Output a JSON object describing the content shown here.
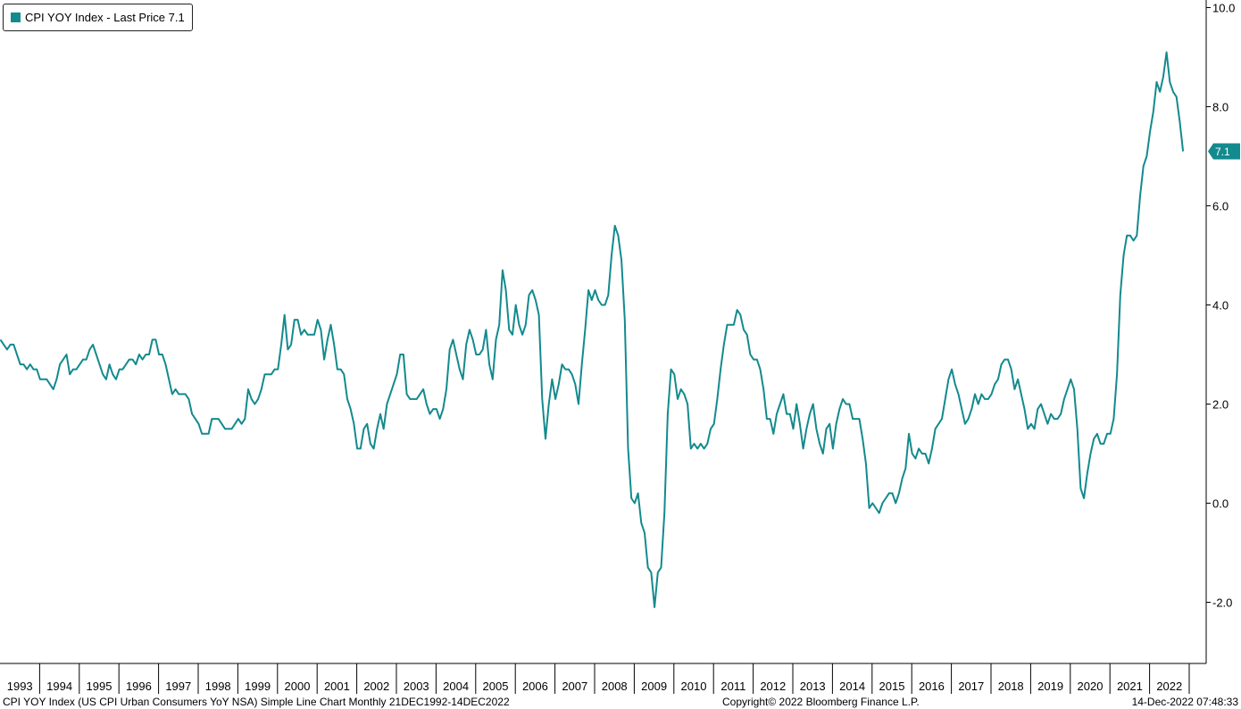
{
  "legend": {
    "label": "CPI YOY Index - Last Price 7.1",
    "color": "#138a8e"
  },
  "footer": {
    "description": "CPI YOY Index (US CPI Urban Consumers YoY NSA) Simple Line Chart Monthly 21DEC1992-14DEC2022",
    "copyright": "Copyright© 2022 Bloomberg Finance L.P.",
    "timestamp": "14-Dec-2022 07:48:33"
  },
  "chart_data": {
    "type": "line",
    "title": "",
    "xlabel": "",
    "ylabel": "",
    "ylim": [
      -3.1,
      10.1
    ],
    "yticks": [
      -2.0,
      0.0,
      2.0,
      4.0,
      6.0,
      8.0,
      10.0
    ],
    "ytick_labels": [
      "-2.0",
      "0.0",
      "2.0",
      "4.0",
      "6.0",
      "8.0",
      "10.0"
    ],
    "xlim": [
      "1993-01",
      "2022-12"
    ],
    "year_labels": [
      "1993",
      "1994",
      "1995",
      "1996",
      "1997",
      "1998",
      "1999",
      "2000",
      "2001",
      "2002",
      "2003",
      "2004",
      "2005",
      "2006",
      "2007",
      "2008",
      "2009",
      "2010",
      "2011",
      "2012",
      "2013",
      "2014",
      "2015",
      "2016",
      "2017",
      "2018",
      "2019",
      "2020",
      "2021",
      "2022"
    ],
    "last_value_label": "7.1",
    "grid": false,
    "legend_position": "top-left",
    "line_color": "#138a8e",
    "series": [
      {
        "name": "CPI YOY Index",
        "x": [
          "1993-01",
          "1993-02",
          "1993-03",
          "1993-04",
          "1993-05",
          "1993-06",
          "1993-07",
          "1993-08",
          "1993-09",
          "1993-10",
          "1993-11",
          "1993-12",
          "1994-01",
          "1994-02",
          "1994-03",
          "1994-04",
          "1994-05",
          "1994-06",
          "1994-07",
          "1994-08",
          "1994-09",
          "1994-10",
          "1994-11",
          "1994-12",
          "1995-01",
          "1995-02",
          "1995-03",
          "1995-04",
          "1995-05",
          "1995-06",
          "1995-07",
          "1995-08",
          "1995-09",
          "1995-10",
          "1995-11",
          "1995-12",
          "1996-01",
          "1996-02",
          "1996-03",
          "1996-04",
          "1996-05",
          "1996-06",
          "1996-07",
          "1996-08",
          "1996-09",
          "1996-10",
          "1996-11",
          "1996-12",
          "1997-01",
          "1997-02",
          "1997-03",
          "1997-04",
          "1997-05",
          "1997-06",
          "1997-07",
          "1997-08",
          "1997-09",
          "1997-10",
          "1997-11",
          "1997-12",
          "1998-01",
          "1998-02",
          "1998-03",
          "1998-04",
          "1998-05",
          "1998-06",
          "1998-07",
          "1998-08",
          "1998-09",
          "1998-10",
          "1998-11",
          "1998-12",
          "1999-01",
          "1999-02",
          "1999-03",
          "1999-04",
          "1999-05",
          "1999-06",
          "1999-07",
          "1999-08",
          "1999-09",
          "1999-10",
          "1999-11",
          "1999-12",
          "2000-01",
          "2000-02",
          "2000-03",
          "2000-04",
          "2000-05",
          "2000-06",
          "2000-07",
          "2000-08",
          "2000-09",
          "2000-10",
          "2000-11",
          "2000-12",
          "2001-01",
          "2001-02",
          "2001-03",
          "2001-04",
          "2001-05",
          "2001-06",
          "2001-07",
          "2001-08",
          "2001-09",
          "2001-10",
          "2001-11",
          "2001-12",
          "2002-01",
          "2002-02",
          "2002-03",
          "2002-04",
          "2002-05",
          "2002-06",
          "2002-07",
          "2002-08",
          "2002-09",
          "2002-10",
          "2002-11",
          "2002-12",
          "2003-01",
          "2003-02",
          "2003-03",
          "2003-04",
          "2003-05",
          "2003-06",
          "2003-07",
          "2003-08",
          "2003-09",
          "2003-10",
          "2003-11",
          "2003-12",
          "2004-01",
          "2004-02",
          "2004-03",
          "2004-04",
          "2004-05",
          "2004-06",
          "2004-07",
          "2004-08",
          "2004-09",
          "2004-10",
          "2004-11",
          "2004-12",
          "2005-01",
          "2005-02",
          "2005-03",
          "2005-04",
          "2005-05",
          "2005-06",
          "2005-07",
          "2005-08",
          "2005-09",
          "2005-10",
          "2005-11",
          "2005-12",
          "2006-01",
          "2006-02",
          "2006-03",
          "2006-04",
          "2006-05",
          "2006-06",
          "2006-07",
          "2006-08",
          "2006-09",
          "2006-10",
          "2006-11",
          "2006-12",
          "2007-01",
          "2007-02",
          "2007-03",
          "2007-04",
          "2007-05",
          "2007-06",
          "2007-07",
          "2007-08",
          "2007-09",
          "2007-10",
          "2007-11",
          "2007-12",
          "2008-01",
          "2008-02",
          "2008-03",
          "2008-04",
          "2008-05",
          "2008-06",
          "2008-07",
          "2008-08",
          "2008-09",
          "2008-10",
          "2008-11",
          "2008-12",
          "2009-01",
          "2009-02",
          "2009-03",
          "2009-04",
          "2009-05",
          "2009-06",
          "2009-07",
          "2009-08",
          "2009-09",
          "2009-10",
          "2009-11",
          "2009-12",
          "2010-01",
          "2010-02",
          "2010-03",
          "2010-04",
          "2010-05",
          "2010-06",
          "2010-07",
          "2010-08",
          "2010-09",
          "2010-10",
          "2010-11",
          "2010-12",
          "2011-01",
          "2011-02",
          "2011-03",
          "2011-04",
          "2011-05",
          "2011-06",
          "2011-07",
          "2011-08",
          "2011-09",
          "2011-10",
          "2011-11",
          "2011-12",
          "2012-01",
          "2012-02",
          "2012-03",
          "2012-04",
          "2012-05",
          "2012-06",
          "2012-07",
          "2012-08",
          "2012-09",
          "2012-10",
          "2012-11",
          "2012-12",
          "2013-01",
          "2013-02",
          "2013-03",
          "2013-04",
          "2013-05",
          "2013-06",
          "2013-07",
          "2013-08",
          "2013-09",
          "2013-10",
          "2013-11",
          "2013-12",
          "2014-01",
          "2014-02",
          "2014-03",
          "2014-04",
          "2014-05",
          "2014-06",
          "2014-07",
          "2014-08",
          "2014-09",
          "2014-10",
          "2014-11",
          "2014-12",
          "2015-01",
          "2015-02",
          "2015-03",
          "2015-04",
          "2015-05",
          "2015-06",
          "2015-07",
          "2015-08",
          "2015-09",
          "2015-10",
          "2015-11",
          "2015-12",
          "2016-01",
          "2016-02",
          "2016-03",
          "2016-04",
          "2016-05",
          "2016-06",
          "2016-07",
          "2016-08",
          "2016-09",
          "2016-10",
          "2016-11",
          "2016-12",
          "2017-01",
          "2017-02",
          "2017-03",
          "2017-04",
          "2017-05",
          "2017-06",
          "2017-07",
          "2017-08",
          "2017-09",
          "2017-10",
          "2017-11",
          "2017-12",
          "2018-01",
          "2018-02",
          "2018-03",
          "2018-04",
          "2018-05",
          "2018-06",
          "2018-07",
          "2018-08",
          "2018-09",
          "2018-10",
          "2018-11",
          "2018-12",
          "2019-01",
          "2019-02",
          "2019-03",
          "2019-04",
          "2019-05",
          "2019-06",
          "2019-07",
          "2019-08",
          "2019-09",
          "2019-10",
          "2019-11",
          "2019-12",
          "2020-01",
          "2020-02",
          "2020-03",
          "2020-04",
          "2020-05",
          "2020-06",
          "2020-07",
          "2020-08",
          "2020-09",
          "2020-10",
          "2020-11",
          "2020-12",
          "2021-01",
          "2021-02",
          "2021-03",
          "2021-04",
          "2021-05",
          "2021-06",
          "2021-07",
          "2021-08",
          "2021-09",
          "2021-10",
          "2021-11",
          "2021-12",
          "2022-01",
          "2022-02",
          "2022-03",
          "2022-04",
          "2022-05",
          "2022-06",
          "2022-07",
          "2022-08",
          "2022-09",
          "2022-10",
          "2022-11"
        ],
        "values": [
          3.3,
          3.2,
          3.1,
          3.2,
          3.2,
          3.0,
          2.8,
          2.8,
          2.7,
          2.8,
          2.7,
          2.7,
          2.5,
          2.5,
          2.5,
          2.4,
          2.3,
          2.5,
          2.8,
          2.9,
          3.0,
          2.6,
          2.7,
          2.7,
          2.8,
          2.9,
          2.9,
          3.1,
          3.2,
          3.0,
          2.8,
          2.6,
          2.5,
          2.8,
          2.6,
          2.5,
          2.7,
          2.7,
          2.8,
          2.9,
          2.9,
          2.8,
          3.0,
          2.9,
          3.0,
          3.0,
          3.3,
          3.3,
          3.0,
          3.0,
          2.8,
          2.5,
          2.2,
          2.3,
          2.2,
          2.2,
          2.2,
          2.1,
          1.8,
          1.7,
          1.6,
          1.4,
          1.4,
          1.4,
          1.7,
          1.7,
          1.7,
          1.6,
          1.5,
          1.5,
          1.5,
          1.6,
          1.7,
          1.6,
          1.7,
          2.3,
          2.1,
          2.0,
          2.1,
          2.3,
          2.6,
          2.6,
          2.6,
          2.7,
          2.7,
          3.2,
          3.8,
          3.1,
          3.2,
          3.7,
          3.7,
          3.4,
          3.5,
          3.4,
          3.4,
          3.4,
          3.7,
          3.5,
          2.9,
          3.3,
          3.6,
          3.2,
          2.7,
          2.7,
          2.6,
          2.1,
          1.9,
          1.6,
          1.1,
          1.1,
          1.5,
          1.6,
          1.2,
          1.1,
          1.5,
          1.8,
          1.5,
          2.0,
          2.2,
          2.4,
          2.6,
          3.0,
          3.0,
          2.2,
          2.1,
          2.1,
          2.1,
          2.2,
          2.3,
          2.0,
          1.8,
          1.9,
          1.9,
          1.7,
          1.9,
          2.3,
          3.1,
          3.3,
          3.0,
          2.7,
          2.5,
          3.2,
          3.5,
          3.3,
          3.0,
          3.0,
          3.1,
          3.5,
          2.8,
          2.5,
          3.3,
          3.6,
          4.7,
          4.3,
          3.5,
          3.4,
          4.0,
          3.6,
          3.4,
          3.6,
          4.2,
          4.3,
          4.1,
          3.8,
          2.1,
          1.3,
          2.0,
          2.5,
          2.1,
          2.4,
          2.8,
          2.7,
          2.7,
          2.6,
          2.4,
          2.0,
          2.8,
          3.5,
          4.3,
          4.1,
          4.3,
          4.1,
          4.0,
          4.0,
          4.2,
          5.0,
          5.6,
          5.4,
          4.9,
          3.7,
          1.1,
          0.1,
          0.0,
          0.2,
          -0.4,
          -0.6,
          -1.3,
          -1.4,
          -2.1,
          -1.4,
          -1.3,
          -0.2,
          1.8,
          2.7,
          2.6,
          2.1,
          2.3,
          2.2,
          2.0,
          1.1,
          1.2,
          1.1,
          1.2,
          1.1,
          1.2,
          1.5,
          1.6,
          2.1,
          2.7,
          3.2,
          3.6,
          3.6,
          3.6,
          3.9,
          3.8,
          3.5,
          3.4,
          3.0,
          2.9,
          2.9,
          2.7,
          2.3,
          1.7,
          1.7,
          1.4,
          1.8,
          2.0,
          2.2,
          1.8,
          1.8,
          1.5,
          2.0,
          1.6,
          1.1,
          1.5,
          1.8,
          2.0,
          1.5,
          1.2,
          1.0,
          1.5,
          1.6,
          1.1,
          1.6,
          1.9,
          2.1,
          2.0,
          2.0,
          1.7,
          1.7,
          1.7,
          1.3,
          0.8,
          -0.1,
          0.0,
          -0.1,
          -0.2,
          0.0,
          0.1,
          0.2,
          0.2,
          0.0,
          0.2,
          0.5,
          0.7,
          1.4,
          1.0,
          0.9,
          1.1,
          1.0,
          1.0,
          0.8,
          1.1,
          1.5,
          1.6,
          1.7,
          2.1,
          2.5,
          2.7,
          2.4,
          2.2,
          1.9,
          1.6,
          1.7,
          1.9,
          2.2,
          2.0,
          2.2,
          2.1,
          2.1,
          2.2,
          2.4,
          2.5,
          2.8,
          2.9,
          2.9,
          2.7,
          2.3,
          2.5,
          2.2,
          1.9,
          1.5,
          1.6,
          1.5,
          1.9,
          2.0,
          1.8,
          1.6,
          1.8,
          1.7,
          1.7,
          1.8,
          2.1,
          2.3,
          2.5,
          2.3,
          1.5,
          0.3,
          0.1,
          0.6,
          1.0,
          1.3,
          1.4,
          1.2,
          1.2,
          1.4,
          1.4,
          1.7,
          2.6,
          4.2,
          5.0,
          5.4,
          5.4,
          5.3,
          5.4,
          6.2,
          6.8,
          7.0,
          7.5,
          7.9,
          8.5,
          8.3,
          8.6,
          9.1,
          8.5,
          8.3,
          8.2,
          7.7,
          7.1
        ]
      }
    ]
  }
}
